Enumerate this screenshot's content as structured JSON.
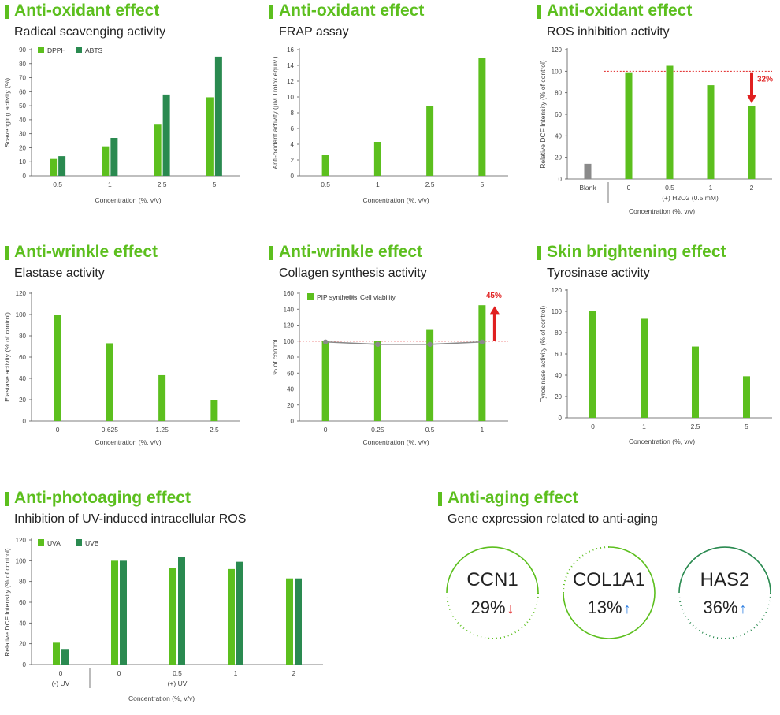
{
  "panels": [
    {
      "title": "Anti-oxidant effect",
      "subtitle": "Radical scavenging activity"
    },
    {
      "title": "Anti-oxidant effect",
      "subtitle": "FRAP assay"
    },
    {
      "title": "Anti-oxidant effect",
      "subtitle": "ROS inhibition activity"
    },
    {
      "title": "Anti-wrinkle effect",
      "subtitle": "Elastase activity"
    },
    {
      "title": "Anti-wrinkle effect",
      "subtitle": "Collagen synthesis activity"
    },
    {
      "title": "Skin brightening effect",
      "subtitle": "Tyrosinase activity"
    },
    {
      "title": "Anti-photoaging effect",
      "subtitle": "Inhibition of UV-induced intracellular ROS"
    },
    {
      "title": "Anti-aging effect",
      "subtitle": "Gene expression related to anti-aging"
    }
  ],
  "colors": {
    "light_green": "#5cbf1e",
    "dark_green": "#2a8a50",
    "gray": "#8a8a8a",
    "red": "#e02020",
    "blue": "#2a7de1"
  },
  "chart_data": [
    {
      "type": "bar",
      "categories": [
        "0.5",
        "1",
        "2.5",
        "5"
      ],
      "series": [
        {
          "name": "DPPH",
          "values": [
            12,
            21,
            37,
            56
          ]
        },
        {
          "name": "ABTS",
          "values": [
            14,
            27,
            58,
            85
          ]
        }
      ],
      "xlabel": "Concentration (%, v/v)",
      "ylabel": "Scavenging activity (%)",
      "ylim": [
        0,
        90
      ],
      "yticks": [
        0,
        10,
        20,
        30,
        40,
        50,
        60,
        70,
        80,
        90
      ],
      "legend": "top-left"
    },
    {
      "type": "bar",
      "categories": [
        "0.5",
        "1",
        "2.5",
        "5"
      ],
      "series": [
        {
          "values": [
            2.6,
            4.3,
            8.8,
            15
          ]
        }
      ],
      "xlabel": "Concentration (%, v/v)",
      "ylabel": "Anti-oxidant activity (μM Trolox equiv.)",
      "ylim": [
        0,
        16
      ],
      "yticks": [
        0,
        2,
        4,
        6,
        8,
        10,
        12,
        14,
        16
      ]
    },
    {
      "type": "bar",
      "categories": [
        "Blank",
        "0",
        "0.5",
        "1",
        "2"
      ],
      "series": [
        {
          "values": [
            14,
            99,
            105,
            87,
            68
          ]
        }
      ],
      "group_labels": [
        {
          "text": "(+) H2O2 (0.5 mM)"
        }
      ],
      "xlabel": "Concentration (%, v/v)",
      "ylabel": "Relative DCF Intensity (% of control)",
      "ylim": [
        0,
        120
      ],
      "yticks": [
        0,
        20,
        40,
        60,
        80,
        100,
        120
      ],
      "reference_line": 100,
      "annotation": "32%"
    },
    {
      "type": "bar",
      "categories": [
        "0",
        "0.625",
        "1.25",
        "2.5"
      ],
      "series": [
        {
          "values": [
            100,
            73,
            43,
            20
          ]
        }
      ],
      "xlabel": "Concentration (%, v/v)",
      "ylabel": "Elastase activity (% of control)",
      "ylim": [
        0,
        120
      ],
      "yticks": [
        0,
        20,
        40,
        60,
        80,
        100,
        120
      ]
    },
    {
      "type": "bar",
      "categories": [
        "0",
        "0.25",
        "0.5",
        "1"
      ],
      "series": [
        {
          "name": "PIP synthesis",
          "values": [
            100,
            100,
            115,
            145
          ]
        },
        {
          "name": "Cell viability",
          "type": "line",
          "values": [
            99,
            96,
            96,
            99
          ]
        }
      ],
      "xlabel": "Concentration (%, v/v)",
      "ylabel": "% of control",
      "ylim": [
        0,
        160
      ],
      "yticks": [
        0,
        20,
        40,
        60,
        80,
        100,
        120,
        140,
        160
      ],
      "reference_line": 100,
      "annotation": "45%",
      "legend": "top-left"
    },
    {
      "type": "bar",
      "categories": [
        "0",
        "1",
        "2.5",
        "5"
      ],
      "series": [
        {
          "values": [
            100,
            93,
            67,
            39
          ]
        }
      ],
      "xlabel": "Concentration (%, v/v)",
      "ylabel": "Tyrosinase activity (% of control)",
      "ylim": [
        0,
        120
      ],
      "yticks": [
        0,
        20,
        40,
        60,
        80,
        100,
        120
      ]
    },
    {
      "type": "bar",
      "categories": [
        "0",
        "0",
        "0.5",
        "1",
        "2"
      ],
      "series": [
        {
          "name": "UVA",
          "values": [
            21,
            100,
            93,
            92,
            83
          ]
        },
        {
          "name": "UVB",
          "values": [
            15,
            100,
            104,
            99,
            83
          ]
        }
      ],
      "group_labels": [
        {
          "text": "(-) UV"
        },
        {
          "text": "(+) UV"
        }
      ],
      "xlabel": "Concentration (%, v/v)",
      "ylabel": "Relative DCF Intensity (% of control)",
      "ylim": [
        0,
        120
      ],
      "yticks": [
        0,
        20,
        40,
        60,
        80,
        100,
        120
      ],
      "legend": "top-left"
    }
  ],
  "genes": [
    {
      "name": "CCN1",
      "value": "29%",
      "direction": "down",
      "arrow": "↓",
      "ring": "light"
    },
    {
      "name": "COL1A1",
      "value": "13%",
      "direction": "up",
      "arrow": "↑",
      "ring": "light"
    },
    {
      "name": "HAS2",
      "value": "36%",
      "direction": "up",
      "arrow": "↑",
      "ring": "dark"
    }
  ]
}
